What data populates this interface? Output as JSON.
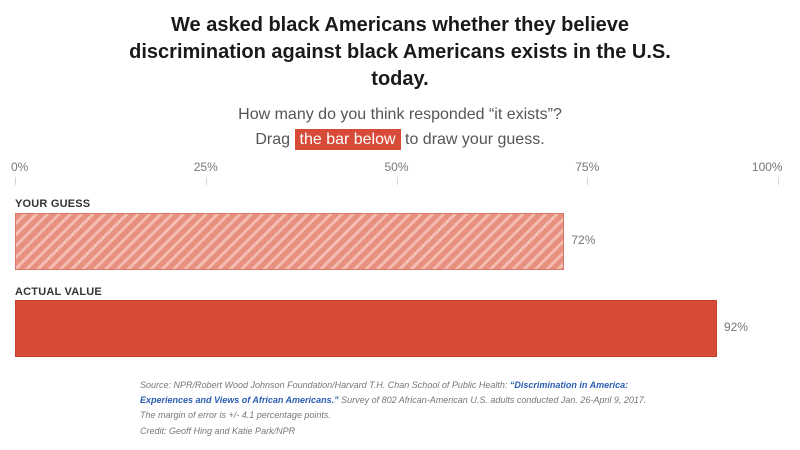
{
  "title": "We asked black Americans whether they believe discrimination against black Americans exists in the U.S. today.",
  "prompt": {
    "line1": "How many do you think responded “it exists”?",
    "line2_before": "Drag",
    "line2_highlight": "the bar below",
    "line2_after": "to draw your guess."
  },
  "colors": {
    "accent": "#d84a38",
    "guess_stripe": "#e7907f",
    "link": "#2a5db0"
  },
  "chart_data": {
    "type": "bar",
    "orientation": "horizontal",
    "xlim": [
      0,
      100
    ],
    "tick_labels": [
      "0%",
      "25%",
      "50%",
      "75%",
      "100%"
    ],
    "tick_values": [
      0,
      25,
      50,
      75,
      100
    ],
    "series": [
      {
        "name": "YOUR GUESS",
        "value": 72,
        "value_label": "72%"
      },
      {
        "name": "ACTUAL VALUE",
        "value": 92,
        "value_label": "92%"
      }
    ]
  },
  "source": {
    "prefix": "Source: NPR/Robert Wood Johnson Foundation/Harvard T.H. Chan School of Public Health:",
    "link_text": "“Discrimination in America: Experiences and Views of African Americans.”",
    "suffix": "Survey of 802 African-American U.S. adults conducted Jan. 26-April 9, 2017. The margin of error is +/- 4.1 percentage points."
  },
  "credit": "Credit: Geoff Hing and Katie Park/NPR"
}
